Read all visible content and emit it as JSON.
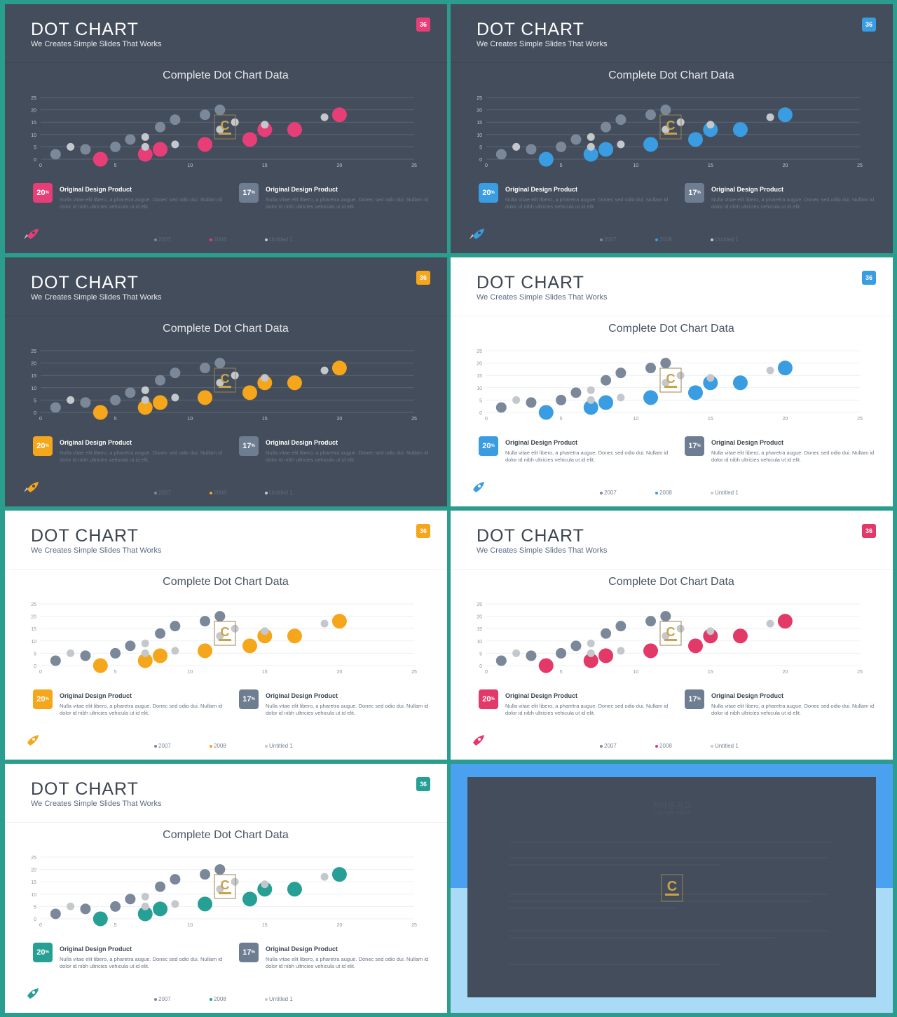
{
  "slides": [
    {
      "theme": "dark",
      "accent": "#e83e78",
      "badge": "36"
    },
    {
      "theme": "dark",
      "accent": "#3a9de2",
      "badge": "36"
    },
    {
      "theme": "dark",
      "accent": "#f6a61a",
      "badge": "36"
    },
    {
      "theme": "light",
      "accent": "#3a9de2",
      "badge": "36"
    },
    {
      "theme": "light",
      "accent": "#f6a61a",
      "badge": "36"
    },
    {
      "theme": "light",
      "accent": "#e33969",
      "badge": "36"
    },
    {
      "theme": "light",
      "accent": "#26a094",
      "badge": "36"
    }
  ],
  "slide_text": {
    "title": "DOT CHART",
    "subtitle": "We Creates Simple Slides That Works",
    "chart_title": "Complete Dot Chart Data",
    "card1": {
      "value": "20",
      "unit": "%",
      "title": "Original Design Product",
      "text": "Nulla vitae elit libero, a pharetra augue. Donec sed odio dui. Nullam id dolor id nibh ultricies vehicula ut id elit."
    },
    "card2": {
      "value": "17",
      "unit": "%",
      "title": "Original Design Product",
      "text": "Nulla vitae elit libero, a pharetra augue. Donec sed odio dui. Nullam id dolor id nibh ultricies vehicula ut id elit."
    }
  },
  "colors": {
    "series_2007": "#7b889a",
    "series_untitled": "#c4c8cd",
    "card2_badge": "#6f7d92",
    "copyright_top": "#4aa1f0",
    "copyright_bottom": "#a9dbf7",
    "copyright_panel": "#444d5b"
  },
  "icons": {
    "slide_corner": "rocket-icon",
    "watermark": "contents-logo-icon"
  },
  "chart_data": {
    "type": "scatter",
    "xlim": [
      0,
      25
    ],
    "ylim": [
      0,
      25
    ],
    "x_ticks": [
      0,
      5,
      10,
      15,
      20,
      25
    ],
    "y_ticks": [
      0,
      5,
      10,
      15,
      20,
      25
    ],
    "grid": true,
    "legend_position": "bottom",
    "series": [
      {
        "name": "2007",
        "points": [
          {
            "x": 1,
            "y": 2
          },
          {
            "x": 3,
            "y": 4
          },
          {
            "x": 5,
            "y": 5
          },
          {
            "x": 6,
            "y": 8
          },
          {
            "x": 8,
            "y": 13
          },
          {
            "x": 9,
            "y": 16
          },
          {
            "x": 11,
            "y": 18
          },
          {
            "x": 12,
            "y": 20
          }
        ]
      },
      {
        "name": "2008",
        "points": [
          {
            "x": 4,
            "y": 0
          },
          {
            "x": 7,
            "y": 2
          },
          {
            "x": 8,
            "y": 4
          },
          {
            "x": 11,
            "y": 6
          },
          {
            "x": 14,
            "y": 8
          },
          {
            "x": 15,
            "y": 12
          },
          {
            "x": 17,
            "y": 12
          },
          {
            "x": 20,
            "y": 18
          }
        ]
      },
      {
        "name": "Untitled 1",
        "points": [
          {
            "x": 2,
            "y": 5
          },
          {
            "x": 7,
            "y": 5
          },
          {
            "x": 7,
            "y": 9
          },
          {
            "x": 9,
            "y": 6
          },
          {
            "x": 12,
            "y": 12
          },
          {
            "x": 13,
            "y": 15
          },
          {
            "x": 15,
            "y": 14
          },
          {
            "x": 19,
            "y": 17
          }
        ]
      }
    ]
  },
  "copyright": {
    "title": "저작권 공고",
    "subtitle": "Copyright Notice"
  }
}
